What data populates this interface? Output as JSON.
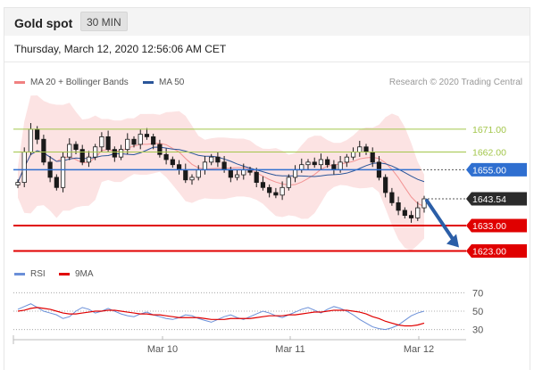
{
  "header": {
    "title": "Gold spot",
    "timeframe": "30 MIN"
  },
  "timestamp": "Thursday, March 12, 2020 12:56:06 AM CET",
  "legend": {
    "ma_bb_label": "MA 20 + Bollinger Bands",
    "ma50_label": "MA 50",
    "credit": "Research © 2020 Trading Central",
    "rsi_label": "RSI",
    "rsi_ma_label": "9MA"
  },
  "colors": {
    "bollinger": "#f08080",
    "ma50": "#2a5599",
    "candle": "#1a1a1a",
    "green_level": "#a3c64b",
    "blue_level": "#2f6fd0",
    "red_level": "#e00000",
    "current": "#2b2b2b",
    "arrow": "#2b5ea7",
    "rsi": "#6a8fd8",
    "rsi_ma": "#e00000"
  },
  "chart_data": [
    {
      "type": "line",
      "title": "Gold spot",
      "subtitle": "30 MIN",
      "series": [
        {
          "name": "MA 20 + Bollinger Bands",
          "kind": "bollinger_band"
        },
        {
          "name": "MA 50",
          "kind": "moving_average"
        }
      ],
      "ohlc_close_path": [
        1650,
        1662,
        1671,
        1667,
        1658,
        1652,
        1648,
        1660,
        1665,
        1663,
        1658,
        1660,
        1664,
        1668,
        1663,
        1660,
        1663,
        1667,
        1665,
        1669,
        1668,
        1665,
        1661,
        1659,
        1657,
        1655,
        1651,
        1652,
        1655,
        1658,
        1660,
        1658,
        1655,
        1652,
        1653,
        1655,
        1654,
        1650,
        1648,
        1646,
        1645,
        1648,
        1652,
        1655,
        1657,
        1658,
        1657,
        1659,
        1657,
        1655,
        1658,
        1660,
        1662,
        1664,
        1662,
        1658,
        1652,
        1646,
        1642,
        1639,
        1637,
        1636,
        1640,
        1643.54
      ],
      "x_tick_labels": [
        "Mar 10",
        "Mar 11",
        "Mar 12"
      ],
      "levels": [
        {
          "value": 1671.0,
          "label": "1671.00",
          "style": "green"
        },
        {
          "value": 1662.0,
          "label": "1662.00",
          "style": "green"
        },
        {
          "value": 1655.0,
          "label": "1655.00",
          "style": "blue"
        },
        {
          "value": 1643.54,
          "label": "1643.54",
          "style": "current"
        },
        {
          "value": 1633.0,
          "label": "1633.00",
          "style": "red"
        },
        {
          "value": 1623.0,
          "label": "1623.00",
          "style": "red"
        }
      ],
      "annotation": {
        "type": "arrow",
        "direction": "down",
        "from": 1643.54,
        "to": 1623.0
      },
      "legend_position": "top-left",
      "grid": false
    },
    {
      "type": "line",
      "series": [
        {
          "name": "RSI",
          "values": [
            52,
            55,
            58,
            54,
            50,
            48,
            46,
            42,
            44,
            50,
            54,
            52,
            48,
            50,
            53,
            50,
            47,
            45,
            44,
            47,
            49,
            46,
            44,
            42,
            41,
            43,
            46,
            45,
            42,
            40,
            38,
            41,
            44,
            46,
            43,
            41,
            44,
            47,
            50,
            48,
            45,
            43,
            46,
            49,
            52,
            54,
            51,
            48,
            52,
            55,
            53,
            50,
            46,
            41,
            37,
            33,
            31,
            30,
            32,
            35,
            40,
            45,
            48,
            50
          ]
        },
        {
          "name": "9MA",
          "values": [
            50,
            51,
            53,
            54,
            53,
            52,
            50,
            48,
            47,
            47,
            48,
            49,
            50,
            50,
            51,
            51,
            50,
            49,
            48,
            47,
            47,
            46,
            46,
            45,
            44,
            43,
            43,
            43,
            43,
            42,
            41,
            41,
            41,
            42,
            42,
            42,
            42,
            43,
            44,
            45,
            45,
            45,
            46,
            46,
            47,
            48,
            49,
            49,
            50,
            51,
            51,
            51,
            50,
            49,
            47,
            44,
            42,
            39,
            37,
            35,
            34,
            34,
            35,
            37
          ]
        }
      ],
      "y_tick_labels": [
        "70",
        "50",
        "30"
      ],
      "ylim": [
        20,
        80
      ],
      "legend_position": "top-left"
    }
  ]
}
